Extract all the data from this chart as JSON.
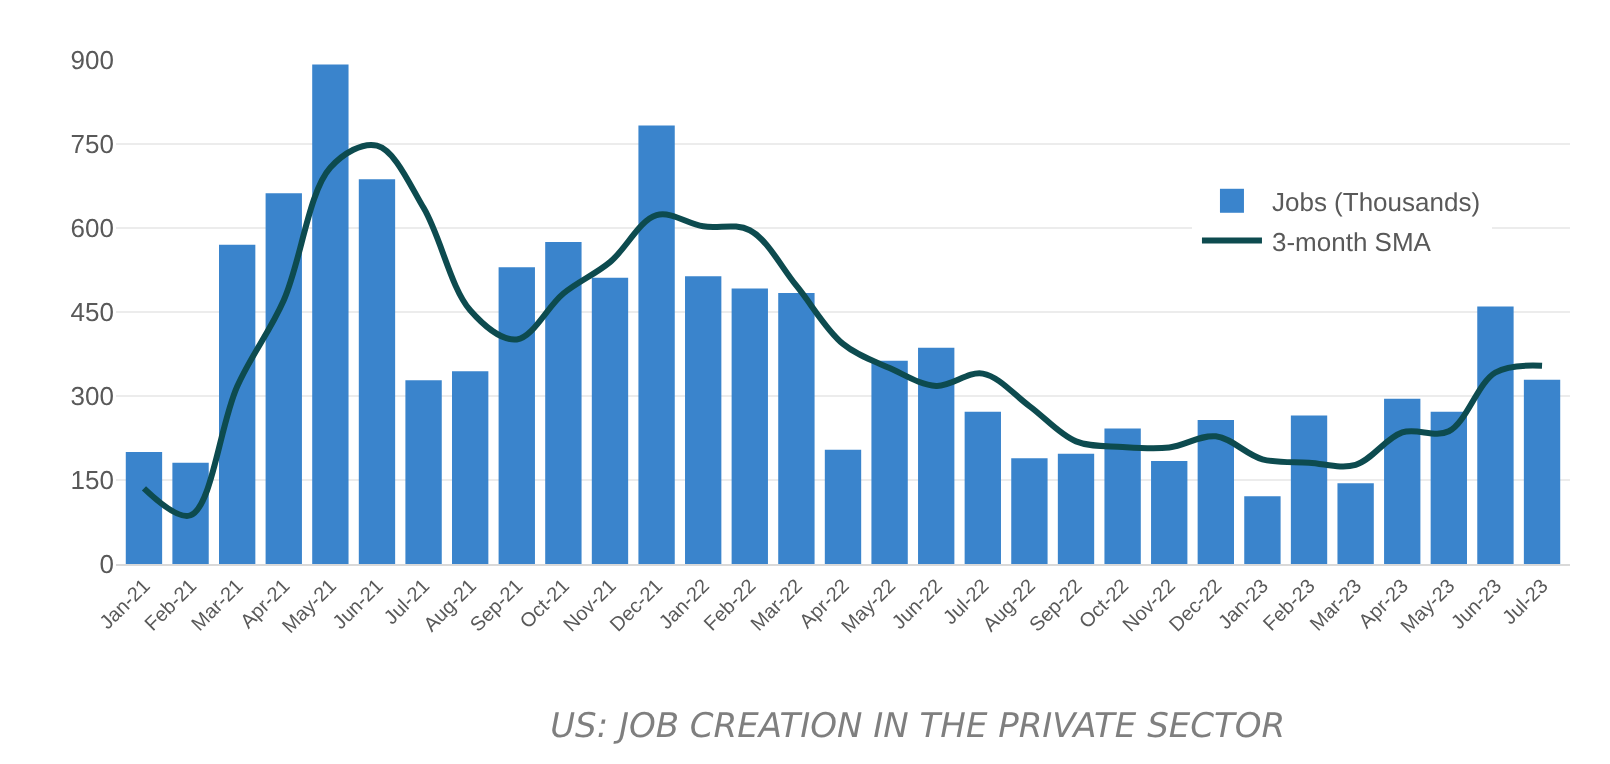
{
  "chart_data": {
    "type": "bar",
    "title": "US: JOB CREATION IN THE PRIVATE SECTOR",
    "categories": [
      "Jan-21",
      "Feb-21",
      "Mar-21",
      "Apr-21",
      "May-21",
      "Jun-21",
      "Jul-21",
      "Aug-21",
      "Sep-21",
      "Oct-21",
      "Nov-21",
      "Dec-21",
      "Jan-22",
      "Feb-22",
      "Mar-22",
      "Apr-22",
      "May-22",
      "Jun-22",
      "Jul-22",
      "Aug-22",
      "Sep-22",
      "Oct-22",
      "Nov-22",
      "Dec-22",
      "Jan-23",
      "Feb-23",
      "Mar-23",
      "Apr-23",
      "May-23",
      "Jun-23",
      "Jul-23"
    ],
    "series": [
      {
        "name": "Jobs (Thousands)",
        "color": "#3a84cc",
        "values": [
          200,
          181,
          570,
          662,
          892,
          687,
          328,
          344,
          530,
          575,
          511,
          783,
          514,
          492,
          484,
          204,
          363,
          386,
          272,
          189,
          197,
          242,
          184,
          257,
          121,
          265,
          144,
          295,
          272,
          460,
          329
        ]
      },
      {
        "name": "3-month SMA",
        "type": "line",
        "color": "#0d4b4f",
        "line_style": "solid",
        "values": [
          135,
          87,
          317,
          471,
          708,
          747,
          636,
          453,
          401,
          483,
          539,
          623,
          603,
          596,
          497,
          393,
          350,
          318,
          340,
          282,
          219,
          209,
          208,
          228,
          187,
          181,
          177,
          235,
          237,
          342,
          354
        ]
      }
    ],
    "ylim": [
      0,
      900
    ],
    "yticks": [
      0,
      150,
      300,
      450,
      600,
      750,
      900
    ],
    "grid": "y",
    "legend": "top right"
  }
}
